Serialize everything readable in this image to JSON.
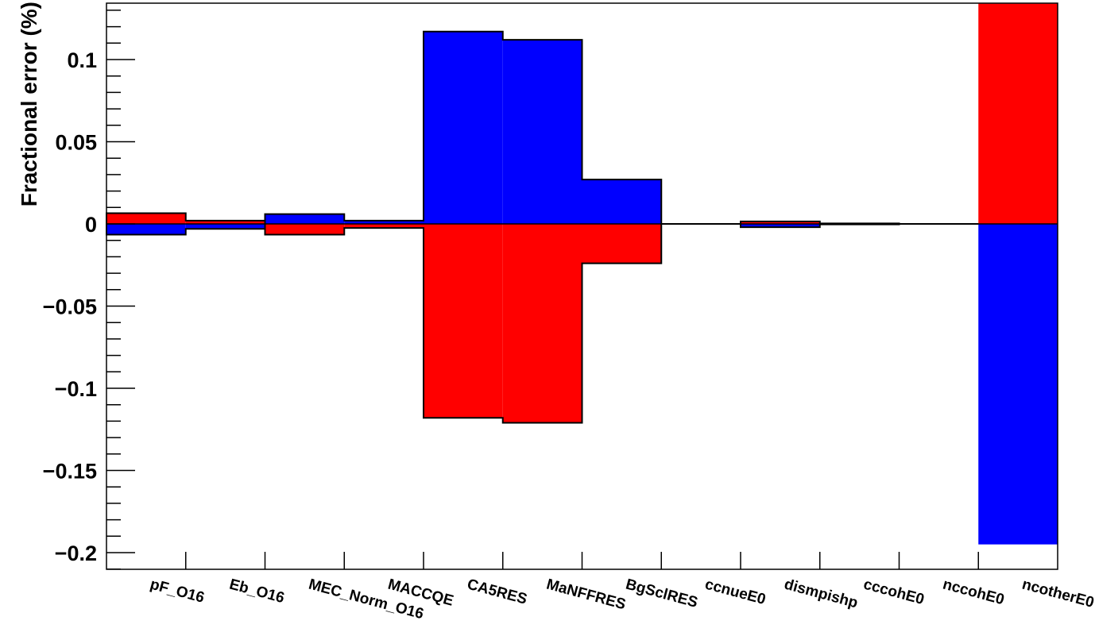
{
  "chart_data": {
    "type": "bar",
    "ylabel": "Fractional error  (%)",
    "categories": [
      "pF_O16",
      "Eb_O16",
      "MEC_Norm_O16",
      "MACCQE",
      "CA5RES",
      "MaNFFRES",
      "BgSclRES",
      "ccnueE0",
      "dismpishp",
      "cccohE0",
      "nccohE0",
      "ncotherE0"
    ],
    "yticks": [
      "0.1",
      "0.05",
      "0",
      "−0.05",
      "−0.1",
      "−0.15",
      "−0.2"
    ],
    "ylim": [
      -0.21,
      0.134
    ],
    "series": [
      {
        "color": "#ff0000",
        "values": [
          0.0065,
          0.002,
          -0.0065,
          -0.0025,
          -0.118,
          -0.121,
          -0.024,
          0.0,
          0.0015,
          0.0003,
          0.0,
          0.134
        ]
      },
      {
        "color": "#0000ff",
        "values": [
          -0.0065,
          -0.003,
          0.006,
          0.002,
          0.117,
          0.112,
          0.027,
          0.0,
          -0.002,
          -0.0003,
          0.0,
          -0.195
        ]
      }
    ],
    "grid": false,
    "legend": "none"
  }
}
